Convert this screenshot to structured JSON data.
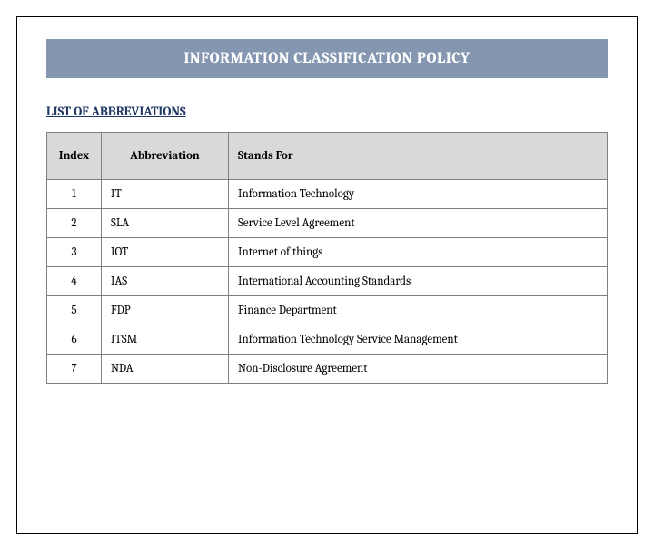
{
  "title": "INFORMATION CLASSIFICATION POLICY",
  "section_heading": "LIST OF ABBREVIATIONS",
  "colors": {
    "title_bg": "#8496b0",
    "title_fg": "#ffffff",
    "heading_fg": "#1f3864",
    "table_header_bg": "#d9d9d9",
    "border": "#7f7f7f"
  },
  "table": {
    "columns": [
      "Index",
      "Abbreviation",
      "Stands For"
    ],
    "rows": [
      {
        "index": "1",
        "abbr": "IT",
        "meaning": "Information Technology"
      },
      {
        "index": "2",
        "abbr": "SLA",
        "meaning": "Service Level Agreement"
      },
      {
        "index": "3",
        "abbr": "IOT",
        "meaning": "Internet of things"
      },
      {
        "index": "4",
        "abbr": "IAS",
        "meaning": "International Accounting Standards"
      },
      {
        "index": "5",
        "abbr": "FDP",
        "meaning": "Finance Department"
      },
      {
        "index": "6",
        "abbr": "ITSM",
        "meaning": "Information Technology Service Management"
      },
      {
        "index": "7",
        "abbr": "NDA",
        "meaning": "Non-Disclosure Agreement"
      }
    ]
  }
}
